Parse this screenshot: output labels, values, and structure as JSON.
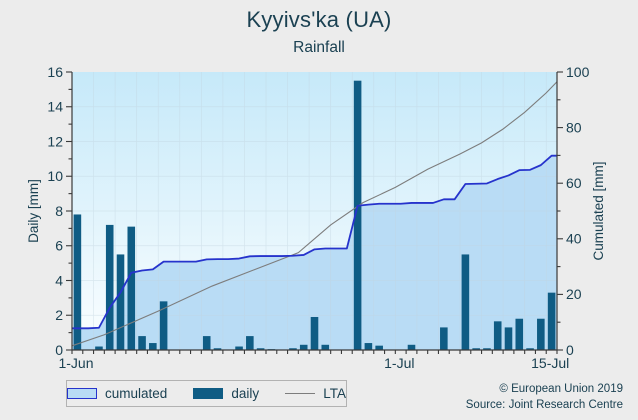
{
  "header": {
    "title": "Kyyivs'ka (UA)",
    "subtitle": "Rainfall"
  },
  "footer": {
    "copyright": "© European Union 2019",
    "source": "Source: Joint Research Centre"
  },
  "legend": {
    "items": [
      {
        "label": "cumulated",
        "type": "area"
      },
      {
        "label": "daily",
        "type": "bar"
      },
      {
        "label": "LTA",
        "type": "line"
      }
    ]
  },
  "colors": {
    "page_bg": "#ececec",
    "text": "#1b4152",
    "plot_bg_top": "#c6e9f9",
    "plot_bg_bottom": "#fbfeff",
    "cumulated_fill": "#b9dcf5",
    "cumulated_line": "#2633cc",
    "daily_bar": "#0f5c84",
    "lta_line": "#7d7d7d",
    "grid": "#c2d4df",
    "axis": "#3a3a3a"
  },
  "chart_data": {
    "type": "combo: daily bars (left axis) + cumulated area-line (right axis) + LTA reference line (right axis)",
    "title": "Kyyivs'ka (UA)",
    "subtitle": "Rainfall",
    "left_axis": {
      "label": "Daily [mm]",
      "min": 0,
      "max": 16,
      "major_step": 2,
      "minor_step": 1
    },
    "right_axis": {
      "label": "Cumulated [mm]",
      "min": 0,
      "max": 100,
      "major_step": 20,
      "minor_step": 10
    },
    "x_tick_labels": [
      {
        "index": 0,
        "label": "1-Jun"
      },
      {
        "index": 30,
        "label": "1-Jul"
      },
      {
        "index": 44,
        "label": "15-Jul"
      }
    ],
    "dates": [
      "1-Jun",
      "2-Jun",
      "3-Jun",
      "4-Jun",
      "5-Jun",
      "6-Jun",
      "7-Jun",
      "8-Jun",
      "9-Jun",
      "10-Jun",
      "11-Jun",
      "12-Jun",
      "13-Jun",
      "14-Jun",
      "15-Jun",
      "16-Jun",
      "17-Jun",
      "18-Jun",
      "19-Jun",
      "20-Jun",
      "21-Jun",
      "22-Jun",
      "23-Jun",
      "24-Jun",
      "25-Jun",
      "26-Jun",
      "27-Jun",
      "28-Jun",
      "29-Jun",
      "30-Jun",
      "1-Jul",
      "2-Jul",
      "3-Jul",
      "4-Jul",
      "5-Jul",
      "6-Jul",
      "7-Jul",
      "8-Jul",
      "9-Jul",
      "10-Jul",
      "11-Jul",
      "12-Jul",
      "13-Jul",
      "14-Jul",
      "15-Jul"
    ],
    "series": [
      {
        "name": "daily",
        "type": "bar",
        "axis": "left",
        "values": [
          7.8,
          0,
          0.2,
          7.2,
          5.5,
          7.1,
          0.8,
          0.4,
          2.8,
          0,
          0,
          0,
          0.8,
          0.1,
          0,
          0.2,
          0.8,
          0.1,
          0.05,
          0,
          0.1,
          0.3,
          1.9,
          0.3,
          0,
          0,
          15.5,
          0.4,
          0.25,
          0,
          0,
          0.3,
          0,
          0,
          1.3,
          0,
          5.5,
          0.1,
          0.1,
          1.65,
          1.3,
          1.8,
          0.1,
          1.8,
          3.3
        ]
      },
      {
        "name": "cumulated",
        "type": "area-line",
        "axis": "right",
        "values": [
          7.8,
          7.8,
          8.0,
          15.2,
          20.7,
          27.8,
          28.6,
          29.0,
          31.8,
          31.8,
          31.8,
          31.8,
          32.6,
          32.7,
          32.7,
          32.9,
          33.7,
          33.8,
          33.8,
          33.8,
          33.9,
          34.2,
          36.2,
          36.5,
          36.5,
          36.5,
          51.9,
          52.3,
          52.6,
          52.6,
          52.6,
          52.9,
          52.9,
          52.9,
          54.2,
          54.2,
          59.7,
          59.8,
          59.9,
          61.5,
          62.8,
          64.7,
          64.8,
          66.5,
          69.9
        ]
      },
      {
        "name": "LTA",
        "type": "line",
        "axis": "right",
        "anchor_points": [
          [
            0,
            1.5
          ],
          [
            3,
            5.5
          ],
          [
            8,
            14
          ],
          [
            13,
            23
          ],
          [
            17,
            29
          ],
          [
            21,
            35
          ],
          [
            24,
            45
          ],
          [
            27,
            53
          ],
          [
            30,
            58.5
          ],
          [
            33,
            65
          ],
          [
            36,
            70.5
          ],
          [
            38,
            74.5
          ],
          [
            40,
            79.5
          ],
          [
            42,
            85.5
          ],
          [
            44,
            92.5
          ],
          [
            45,
            96.5
          ]
        ]
      }
    ]
  }
}
